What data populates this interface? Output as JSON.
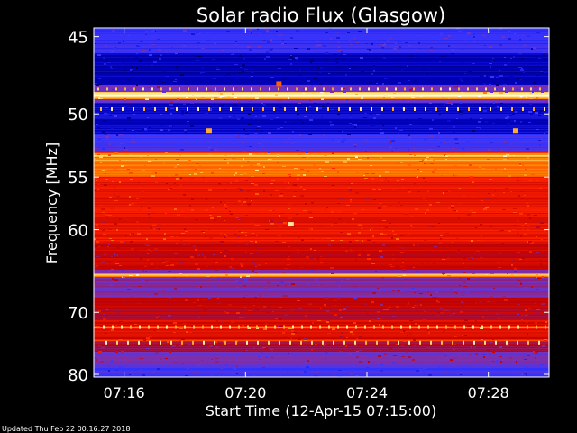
{
  "chart_data": {
    "type": "heatmap",
    "title": "Solar radio Flux (Glasgow)",
    "xlabel": "Start Time (12-Apr-15 07:15:00)",
    "ylabel": "Frequency [MHz]",
    "footer": "Updated Thu Feb 22 00:16:27 2018",
    "x_ticks": [
      {
        "label": "07:16",
        "minutes": 16
      },
      {
        "label": "07:20",
        "minutes": 20
      },
      {
        "label": "07:24",
        "minutes": 24
      },
      {
        "label": "07:28",
        "minutes": 28
      }
    ],
    "xlim_minutes": [
      15,
      30
    ],
    "y_ticks": [
      45,
      50,
      55,
      60,
      70,
      80
    ],
    "ylim_mhz": [
      44.5,
      80.5
    ],
    "y_scale": "reciprocal",
    "grid": false,
    "colormap": [
      "#000044",
      "#0000c0",
      "#3333ff",
      "#7733bb",
      "#c00000",
      "#ff2200",
      "#ff8800",
      "#ffe080",
      "#ffffff"
    ],
    "bands": [
      {
        "from_mhz": 44.5,
        "to_mhz": 46.0,
        "level": 0.25
      },
      {
        "from_mhz": 46.0,
        "to_mhz": 48.0,
        "level": 0.12
      },
      {
        "from_mhz": 48.0,
        "to_mhz": 49.2,
        "level": 0.35
      },
      {
        "from_mhz": 49.2,
        "to_mhz": 51.5,
        "level": 0.15
      },
      {
        "from_mhz": 51.5,
        "to_mhz": 53.0,
        "level": 0.28
      },
      {
        "from_mhz": 53.0,
        "to_mhz": 55.0,
        "level": 0.72
      },
      {
        "from_mhz": 55.0,
        "to_mhz": 61.5,
        "level": 0.58
      },
      {
        "from_mhz": 61.5,
        "to_mhz": 64.5,
        "level": 0.52
      },
      {
        "from_mhz": 64.5,
        "to_mhz": 68.0,
        "level": 0.38
      },
      {
        "from_mhz": 68.0,
        "to_mhz": 71.0,
        "level": 0.5
      },
      {
        "from_mhz": 71.0,
        "to_mhz": 74.0,
        "level": 0.55
      },
      {
        "from_mhz": 74.0,
        "to_mhz": 76.0,
        "level": 0.47
      },
      {
        "from_mhz": 76.0,
        "to_mhz": 78.5,
        "level": 0.36
      },
      {
        "from_mhz": 78.5,
        "to_mhz": 80.5,
        "level": 0.28
      }
    ],
    "bright_lines": [
      {
        "mhz": 48.7,
        "level": 0.97
      },
      {
        "mhz": 53.2,
        "level": 0.85
      },
      {
        "mhz": 53.6,
        "level": 0.8
      },
      {
        "mhz": 54.4,
        "level": 0.76
      },
      {
        "mhz": 65.1,
        "level": 0.84
      },
      {
        "mhz": 72.2,
        "level": 0.78
      },
      {
        "mhz": 74.2,
        "level": 0.7
      }
    ],
    "bursts": [
      {
        "minutes": 18.8,
        "mhz": 51.2,
        "level": 0.8
      },
      {
        "minutes": 28.9,
        "mhz": 51.2,
        "level": 0.8
      },
      {
        "minutes": 21.5,
        "mhz": 59.4,
        "level": 0.9
      },
      {
        "minutes": 21.1,
        "mhz": 47.9,
        "level": 0.7
      }
    ]
  }
}
